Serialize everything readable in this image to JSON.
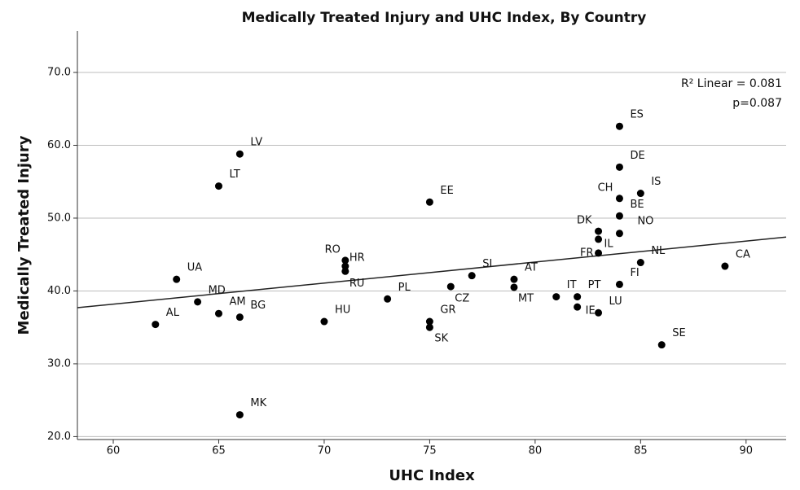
{
  "chart_data": {
    "type": "scatter",
    "title": "Medically Treated Injury and UHC Index, By Country",
    "x_label": "UHC Index",
    "y_label": "Medically Treated Injury",
    "annotations": [
      "R² Linear = 0.081",
      "p=0.087"
    ],
    "labels": [
      "ES",
      "DE",
      "LV",
      "LT",
      "EE",
      "IS",
      "CH",
      "BE",
      "NO",
      "DK",
      "IL",
      "FR",
      "NL",
      "CA",
      "FI",
      "RO",
      "HR",
      "RU",
      "UA",
      "SI",
      "AT",
      "MT",
      "CZ",
      "PL",
      "MD",
      "IT",
      "PT",
      "IE",
      "LU",
      "AM",
      "BG",
      "AL",
      "HU",
      "GR",
      "SK",
      "SE",
      "MK"
    ],
    "x": [
      84,
      84,
      66,
      65,
      75,
      85,
      84,
      84,
      84,
      83,
      83,
      83,
      85,
      89,
      84,
      71,
      71,
      71,
      63,
      77,
      79,
      79,
      76,
      73,
      64,
      81,
      82,
      82,
      83,
      65,
      66,
      62,
      70,
      75,
      75,
      86,
      66
    ],
    "y": [
      62.6,
      57.0,
      58.8,
      54.4,
      52.2,
      53.4,
      52.7,
      50.3,
      47.9,
      48.2,
      47.1,
      45.2,
      43.9,
      43.4,
      40.9,
      44.2,
      43.4,
      42.7,
      41.6,
      42.1,
      41.6,
      40.5,
      40.6,
      38.9,
      38.5,
      39.2,
      39.2,
      37.8,
      37.0,
      36.9,
      36.4,
      35.4,
      35.8,
      35.8,
      35.0,
      32.6,
      23.0
    ],
    "color": "#000000",
    "fit_line": {
      "x": [
        58.3,
        91.9
      ],
      "y": [
        37.7,
        47.4
      ]
    },
    "xlim": [
      58.3,
      91.9
    ],
    "xticks": [
      60,
      65,
      70,
      75,
      80,
      85,
      90
    ],
    "ylim": [
      19.6,
      75.7
    ],
    "yticks": [
      {
        "value": 20,
        "label": "20.0"
      },
      {
        "value": 30,
        "label": "30.0"
      },
      {
        "value": 40,
        "label": "40.0"
      },
      {
        "value": 50,
        "label": "50.0"
      },
      {
        "value": 60,
        "label": "60.0"
      },
      {
        "value": 70,
        "label": "70.0"
      }
    ],
    "grid": true
  }
}
